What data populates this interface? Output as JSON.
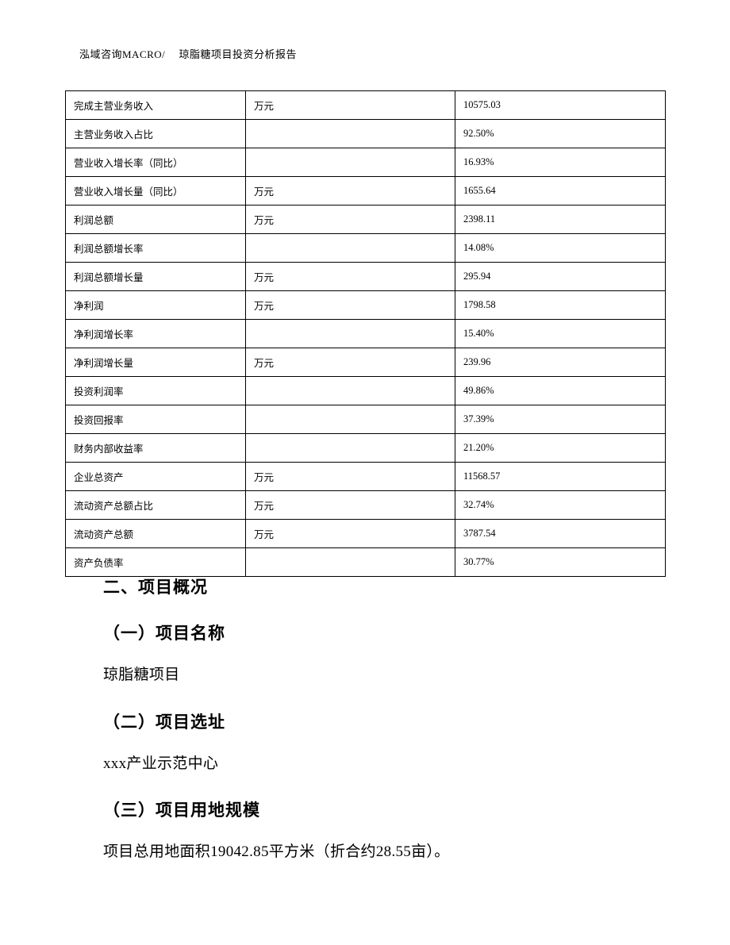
{
  "header": {
    "text": "泓域咨询MACRO/　 琼脂糖项目投资分析报告"
  },
  "table": {
    "rows": [
      {
        "label": "完成主营业务收入",
        "unit": "万元",
        "value": "10575.03"
      },
      {
        "label": "主营业务收入占比",
        "unit": "",
        "value": "92.50%"
      },
      {
        "label": "营业收入增长率（同比）",
        "unit": "",
        "value": "16.93%"
      },
      {
        "label": "营业收入增长量（同比）",
        "unit": "万元",
        "value": "1655.64"
      },
      {
        "label": "利润总额",
        "unit": "万元",
        "value": "2398.11"
      },
      {
        "label": "利润总额增长率",
        "unit": "",
        "value": "14.08%"
      },
      {
        "label": "利润总额增长量",
        "unit": "万元",
        "value": "295.94"
      },
      {
        "label": "净利润",
        "unit": "万元",
        "value": "1798.58"
      },
      {
        "label": "净利润增长率",
        "unit": "",
        "value": "15.40%"
      },
      {
        "label": "净利润增长量",
        "unit": "万元",
        "value": "239.96"
      },
      {
        "label": "投资利润率",
        "unit": "",
        "value": "49.86%"
      },
      {
        "label": "投资回报率",
        "unit": "",
        "value": "37.39%"
      },
      {
        "label": "财务内部收益率",
        "unit": "",
        "value": "21.20%"
      },
      {
        "label": "企业总资产",
        "unit": "万元",
        "value": "11568.57"
      },
      {
        "label": "流动资产总额占比",
        "unit": "万元",
        "value": "32.74%"
      },
      {
        "label": "流动资产总额",
        "unit": "万元",
        "value": "3787.54"
      },
      {
        "label": "资产负债率",
        "unit": "",
        "value": "30.77%"
      }
    ]
  },
  "content": {
    "section_heading": "二、项目概况",
    "sub1_heading": "（一）项目名称",
    "sub1_text": "琼脂糖项目",
    "sub2_heading": "（二）项目选址",
    "sub2_text": "xxx产业示范中心",
    "sub3_heading": "（三）项目用地规模",
    "sub3_text": "项目总用地面积19042.85平方米（折合约28.55亩）。"
  }
}
